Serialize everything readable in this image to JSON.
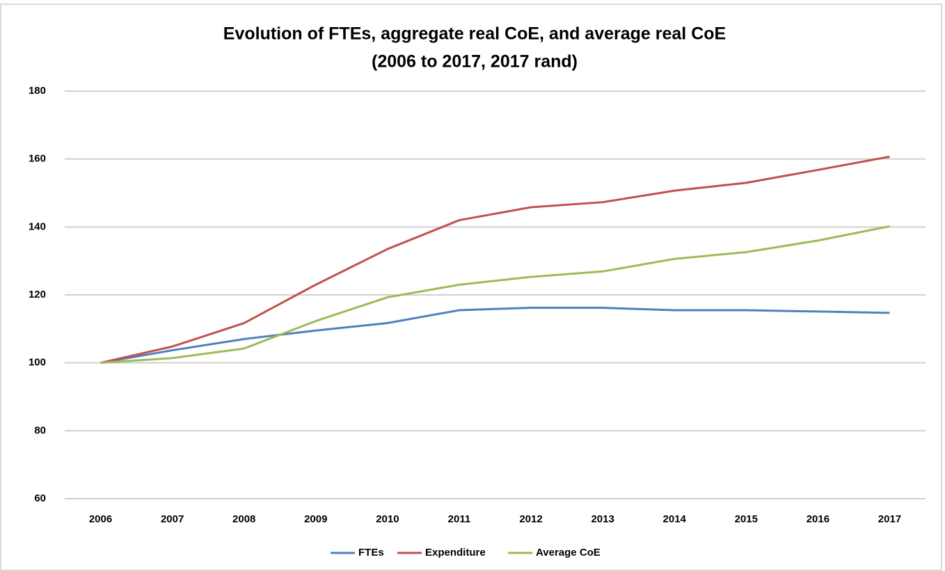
{
  "chart_data": {
    "type": "line",
    "title": "Evolution of FTEs, aggregate real CoE, and average real CoE",
    "subtitle": "(2006 to 2017, 2017 rand)",
    "categories": [
      "2006",
      "2007",
      "2008",
      "2009",
      "2010",
      "2011",
      "2012",
      "2013",
      "2014",
      "2015",
      "2016",
      "2017"
    ],
    "series": [
      {
        "name": "FTEs",
        "color": "#4f81bd",
        "values": [
          100,
          103.7,
          107,
          109.5,
          111.7,
          115.5,
          116.2,
          116.2,
          115.5,
          115.5,
          115.1,
          114.7
        ]
      },
      {
        "name": "Expenditure",
        "color": "#c0504d",
        "values": [
          100,
          104.8,
          111.7,
          123,
          133.5,
          142,
          145.8,
          147.3,
          150.7,
          153,
          156.8,
          160.7
        ]
      },
      {
        "name": "Average CoE",
        "color": "#9bbb59",
        "values": [
          100,
          101.4,
          104.2,
          112.3,
          119.3,
          123,
          125.3,
          126.9,
          130.6,
          132.6,
          136,
          140.2
        ]
      }
    ],
    "ylim": [
      60,
      180
    ],
    "yticks": [
      60,
      80,
      100,
      120,
      140,
      160,
      180
    ],
    "grid": true,
    "legend": "bottom"
  }
}
